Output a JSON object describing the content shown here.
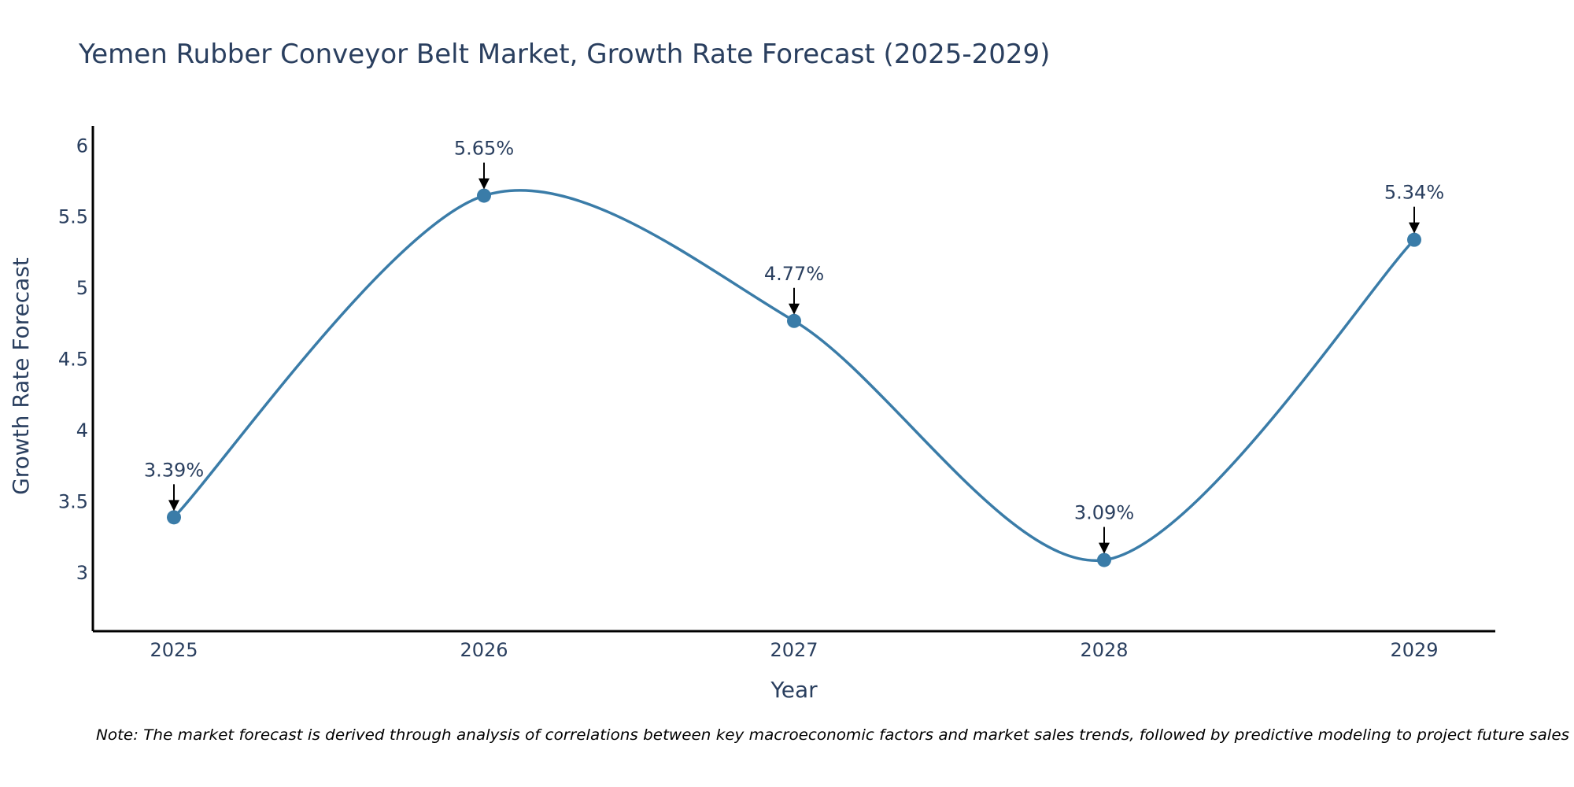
{
  "chart_data": {
    "type": "line",
    "title": "Yemen Rubber Conveyor Belt Market, Growth Rate Forecast (2025-2029)",
    "xlabel": "Year",
    "ylabel": "Growth Rate Forecast",
    "categories": [
      "2025",
      "2026",
      "2027",
      "2028",
      "2029"
    ],
    "series": [
      {
        "name": "Growth Rate Forecast",
        "values": [
          3.39,
          5.65,
          4.77,
          3.09,
          5.34
        ]
      }
    ],
    "data_labels": [
      "3.39%",
      "5.65%",
      "4.77%",
      "3.09%",
      "5.34%"
    ],
    "yticks": [
      "3",
      "3.5",
      "4",
      "4.5",
      "5",
      "5.5",
      "6"
    ],
    "ytick_values": [
      3,
      3.5,
      4,
      4.5,
      5,
      5.5,
      6
    ],
    "ylim": [
      2.59,
      6.14
    ],
    "line_shape": "spline",
    "grid": false,
    "line_color": "#3a7ca8",
    "marker_color": "#3a7ca8",
    "axis_color": "#000000",
    "text_color": "#2a3f5f",
    "note": "Note: The market forecast is derived through analysis of correlations between key macroeconomic factors and market sales trends, followed by predictive modeling to project future sales"
  }
}
